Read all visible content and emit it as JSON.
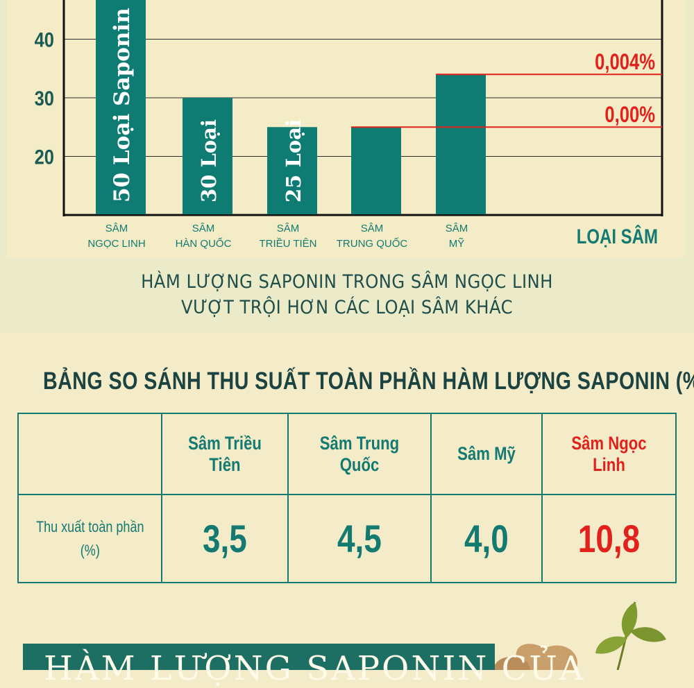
{
  "chart_data": {
    "type": "bar",
    "categories": [
      [
        "SÂM",
        "NGỌC LINH"
      ],
      [
        "SÂM",
        "HÀN QUỐC"
      ],
      [
        "SÂM",
        "TRIỀU TIÊN"
      ],
      [
        "SÂM",
        "TRUNG QUỐC"
      ],
      [
        "SÂM",
        "MỸ"
      ]
    ],
    "values": [
      50,
      30,
      25,
      25,
      34
    ],
    "bar_labels": [
      "50 Loại Saponin",
      "30 Loại",
      "25 Loại",
      "",
      ""
    ],
    "ylim": [
      10,
      50
    ],
    "yticks": [
      20,
      30,
      40
    ],
    "xlabel": "LOẠI SÂM",
    "ylabel": "",
    "grid": true,
    "reference_lines": [
      {
        "label": "0,004%",
        "value": 34,
        "from_category": 4
      },
      {
        "label": "0,00%",
        "value": 25,
        "from_category": 3
      }
    ],
    "colors": {
      "bar": "#0f7c73",
      "axis": "#111111",
      "reference": "#e3211c",
      "xlabel": "#137a72",
      "tick": "#1b5a55"
    }
  },
  "chart_caption": {
    "line1": "HÀM LƯỢNG SAPONIN TRONG SÂM NGỌC LINH",
    "line2": "VƯỢT TRỘI HƠN CÁC LOẠI SÂM KHÁC"
  },
  "table": {
    "title": "BẢNG SO SÁNH THU SUẤT TOÀN PHẦN HÀM LƯỢNG SAPONIN (%).",
    "headers": [
      "",
      "Sâm Triều Tiên",
      "Sâm Trung Quốc",
      "Sâm Mỹ",
      "Sâm Ngọc Linh"
    ],
    "row_label_line1": "Thu xuất toàn phần",
    "row_label_line2": "(%)",
    "values": [
      "3,5",
      "4,5",
      "4,0",
      "10,8"
    ],
    "highlight_color": "#e3211c",
    "primary_color": "#137a72"
  },
  "banner": {
    "text": "HÀM LƯỢNG SAPONIN CỦA"
  }
}
